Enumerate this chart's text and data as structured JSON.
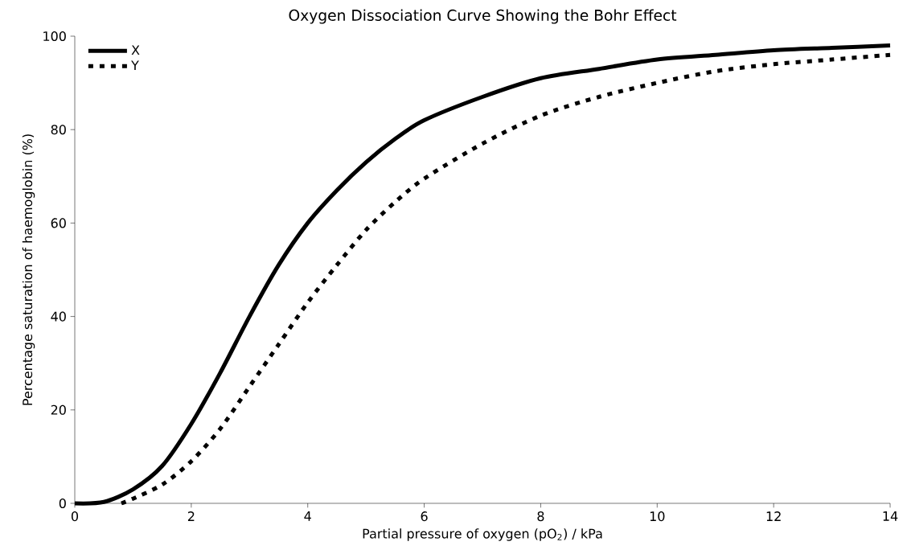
{
  "chart_data": {
    "type": "line",
    "title": "Oxygen Dissociation Curve Showing the Bohr Effect",
    "xlabel": "Partial pressure of oxygen (pO$_{2}$) / kPa",
    "ylabel": "Percentage saturation of haemoglobin (%)",
    "xlim": [
      0,
      14
    ],
    "ylim": [
      0,
      100
    ],
    "xticks": [
      0,
      2,
      4,
      6,
      8,
      10,
      12,
      14
    ],
    "yticks": [
      0,
      20,
      40,
      60,
      80,
      100
    ],
    "legend": "top left",
    "series": [
      {
        "name": "X",
        "color": "#000000",
        "line_style": "solid",
        "x": [
          0,
          0.5,
          1,
          1.5,
          2,
          2.5,
          3,
          3.5,
          4,
          4.5,
          5,
          5.5,
          6,
          7,
          8,
          9,
          10,
          11,
          12,
          13,
          14
        ],
        "values": [
          0,
          0.3,
          3,
          8,
          17,
          28,
          40,
          51,
          60,
          67,
          73,
          78,
          82,
          87,
          91,
          93,
          95,
          96,
          97,
          97.5,
          98
        ]
      },
      {
        "name": "Y",
        "color": "#000000",
        "line_style": "dotted",
        "x": [
          0.8,
          1,
          1.5,
          2,
          2.5,
          3,
          3.5,
          4,
          4.5,
          5,
          5.5,
          6,
          7,
          8,
          9,
          10,
          11,
          12,
          13,
          14
        ],
        "values": [
          0,
          1,
          4,
          9,
          16,
          25,
          34,
          43,
          51,
          58.5,
          64.5,
          69.5,
          77,
          83,
          87,
          90,
          92.5,
          94,
          95,
          96
        ]
      }
    ]
  }
}
